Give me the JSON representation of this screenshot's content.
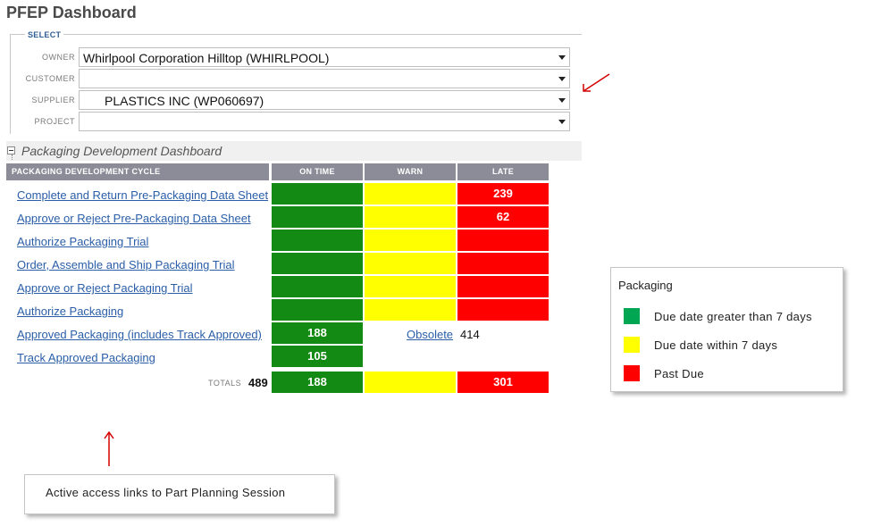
{
  "page": {
    "title": "PFEP Dashboard"
  },
  "select": {
    "legend": "SELECT",
    "fields": [
      {
        "label": "OWNER",
        "value": "Whirlpool Corporation Hilltop (WHIRLPOOL)"
      },
      {
        "label": "CUSTOMER",
        "value": ""
      },
      {
        "label": "SUPPLIER",
        "value": "PLASTICS INC (WP060697)"
      },
      {
        "label": "PROJECT",
        "value": ""
      }
    ]
  },
  "section": {
    "title": "Packaging Development Dashboard"
  },
  "table": {
    "headers": {
      "cycle": "PACKAGING DEVELOPMENT CYCLE",
      "on_time": "ON TIME",
      "warn": "WARN",
      "late": "LATE"
    },
    "rows": [
      {
        "label": "Complete and Return Pre-Packaging Data Sheet",
        "on_time": "",
        "warn": "",
        "late": "239"
      },
      {
        "label": "Approve or Reject Pre-Packaging Data Sheet",
        "on_time": "",
        "warn": "",
        "late": "62"
      },
      {
        "label": "Authorize Packaging Trial",
        "on_time": "",
        "warn": "",
        "late": ""
      },
      {
        "label": "Order, Assemble and Ship Packaging Trial",
        "on_time": "",
        "warn": "",
        "late": ""
      },
      {
        "label": "Approve or Reject Packaging Trial",
        "on_time": "",
        "warn": "",
        "late": ""
      },
      {
        "label": "Authorize Packaging",
        "on_time": "",
        "warn": "",
        "late": ""
      },
      {
        "label": "Approved Packaging (includes Track Approved)",
        "on_time": "188"
      },
      {
        "label": "Track Approved Packaging",
        "on_time": "105"
      }
    ],
    "obsolete": {
      "label": "Obsolete",
      "value": "414"
    },
    "totals": {
      "label": "TOTALS",
      "value": "489",
      "on_time": "188",
      "warn": "",
      "late": "301"
    }
  },
  "legend_box": {
    "title": "Packaging",
    "items": [
      {
        "color": "#00a651",
        "label": "Due date greater than 7 days"
      },
      {
        "color": "#ffff00",
        "label": "Due date within 7 days"
      },
      {
        "color": "#ff0000",
        "label": "Past Due"
      }
    ]
  },
  "annotation": {
    "text": "Active access links to Part Planning Session"
  },
  "colors": {
    "on_time": "#138a13",
    "warn": "#ffff00",
    "late": "#ff0000",
    "link": "#2a5ea8",
    "header": "#8c8c98",
    "arrow": "#d40000"
  }
}
